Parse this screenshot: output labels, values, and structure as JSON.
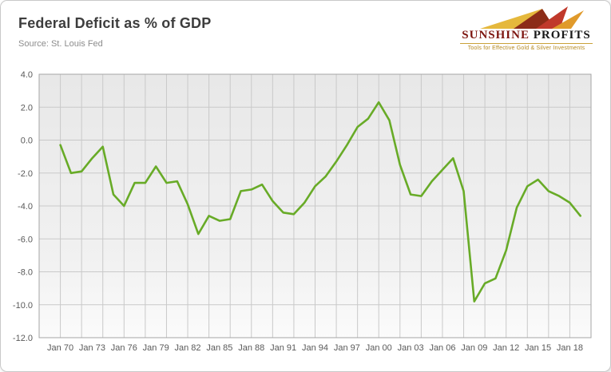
{
  "header": {
    "title": "Federal Deficit as % of GDP",
    "source": "Source: St. Louis Fed"
  },
  "logo": {
    "brand_primary": "SUNSHINE",
    "brand_secondary": "PROFITS",
    "tagline": "Tools for Effective Gold & Silver Investments",
    "brand_primary_color": "#7d150f",
    "brand_secondary_color": "#1a1a1a",
    "tagline_color": "#b5891f"
  },
  "chart_data": {
    "type": "line",
    "title": "Federal Deficit as % of GDP",
    "source": "Source: St. Louis Fed",
    "x": [
      1970,
      1971,
      1972,
      1973,
      1974,
      1975,
      1976,
      1977,
      1978,
      1979,
      1980,
      1981,
      1982,
      1983,
      1984,
      1985,
      1986,
      1987,
      1988,
      1989,
      1990,
      1991,
      1992,
      1993,
      1994,
      1995,
      1996,
      1997,
      1998,
      1999,
      2000,
      2001,
      2002,
      2003,
      2004,
      2005,
      2006,
      2007,
      2008,
      2009,
      2010,
      2011,
      2012,
      2013,
      2014,
      2015,
      2016,
      2017,
      2018,
      2019
    ],
    "values": [
      -0.3,
      -2.0,
      -1.9,
      -1.1,
      -0.4,
      -3.3,
      -4.0,
      -2.6,
      -2.6,
      -1.6,
      -2.6,
      -2.5,
      -3.9,
      -5.7,
      -4.6,
      -4.9,
      -4.8,
      -3.1,
      -3.0,
      -2.7,
      -3.7,
      -4.4,
      -4.5,
      -3.8,
      -2.8,
      -2.2,
      -1.3,
      -0.3,
      0.8,
      1.3,
      2.3,
      1.2,
      -1.5,
      -3.3,
      -3.4,
      -2.5,
      -1.8,
      -1.1,
      -3.1,
      -9.8,
      -8.7,
      -8.4,
      -6.7,
      -4.1,
      -2.8,
      -2.4,
      -3.1,
      -3.4,
      -3.8,
      -4.6
    ],
    "x_tick_labels": [
      "Jan 70",
      "Jan 73",
      "Jan 76",
      "Jan 79",
      "Jan 82",
      "Jan 85",
      "Jan 88",
      "Jan 91",
      "Jan 94",
      "Jan 97",
      "Jan 00",
      "Jan 03",
      "Jan 06",
      "Jan 09",
      "Jan 12",
      "Jan 15",
      "Jan 18"
    ],
    "x_tick_years": [
      1970,
      1973,
      1976,
      1979,
      1982,
      1985,
      1988,
      1991,
      1994,
      1997,
      2000,
      2003,
      2006,
      2009,
      2012,
      2015,
      2018
    ],
    "y_ticks": [
      4,
      2,
      0,
      -2,
      -4,
      -6,
      -8,
      -10,
      -12
    ],
    "ylim": [
      -12,
      4
    ],
    "xlim": [
      1968,
      2020
    ],
    "x_grid_interval": 2,
    "grid": true,
    "legend": "none",
    "line_color": "#68AB27",
    "gridline_color": "#c9c9c9",
    "plot_border_color": "#a6a6a6",
    "tick_label_color": "#595959"
  }
}
